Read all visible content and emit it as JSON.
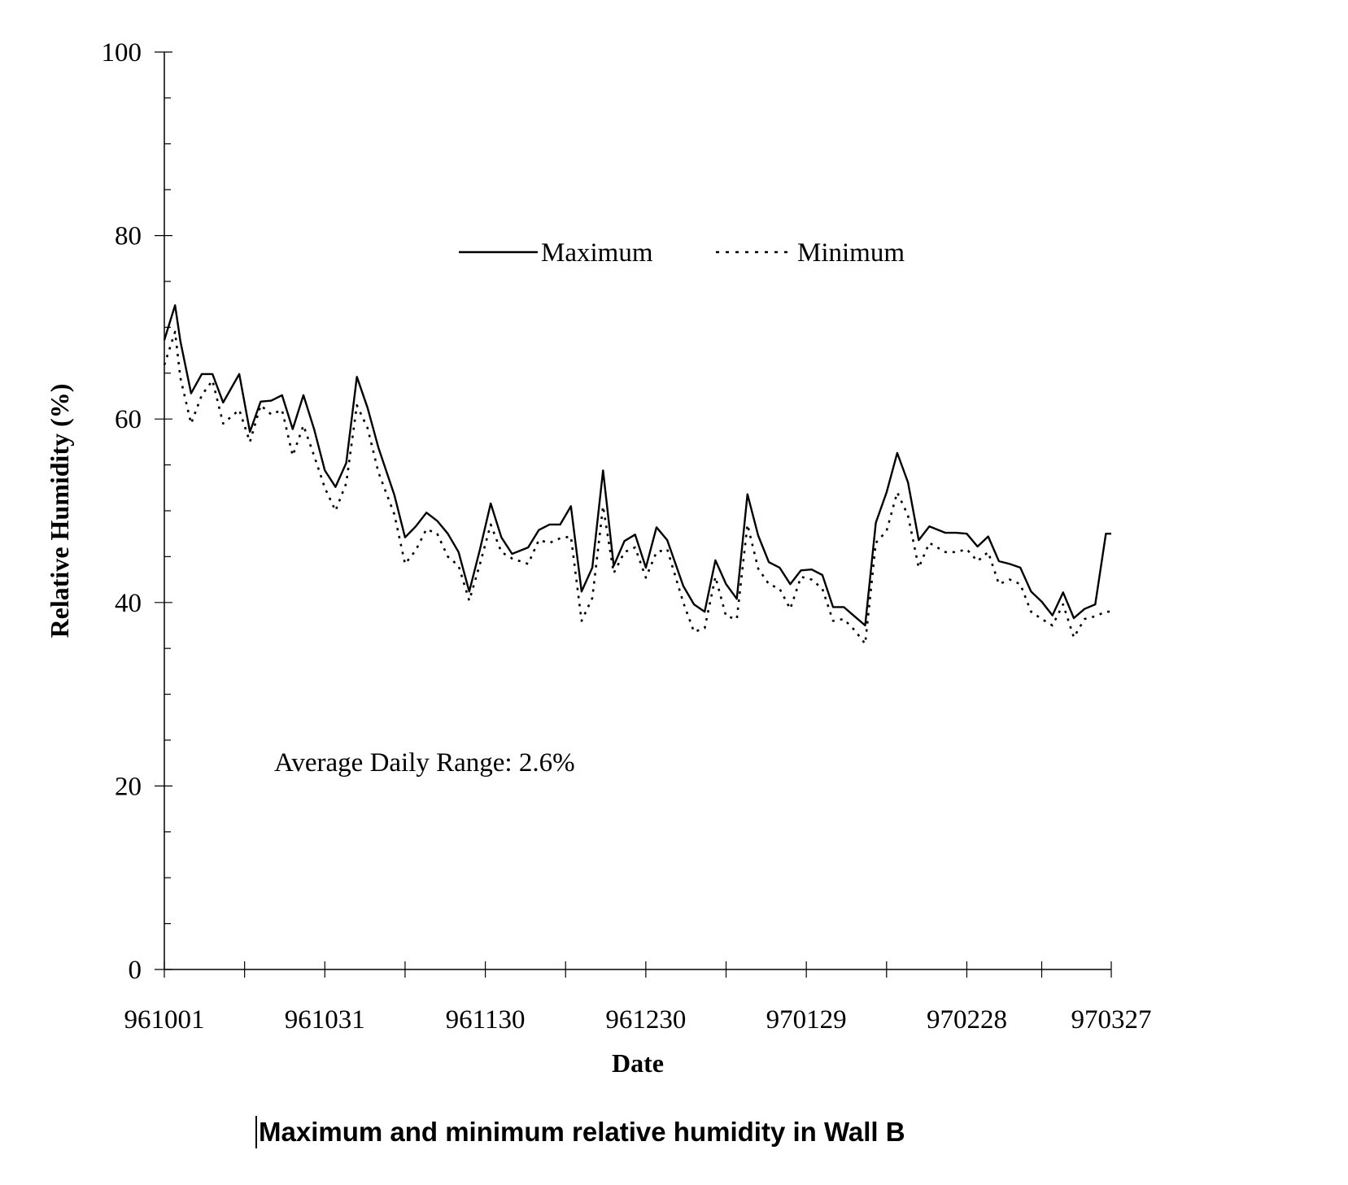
{
  "caption": "Maximum and minimum relative humidity in Wall B",
  "chart_data": {
    "type": "line",
    "xlabel": "Date",
    "ylabel": "Relative Humidity (%)",
    "ylim": [
      0,
      100
    ],
    "yticks": [
      "0",
      "20",
      "40",
      "60",
      "80",
      "100"
    ],
    "xticks": [
      "961001",
      "961031",
      "961130",
      "961230",
      "970129",
      "970228",
      "970327"
    ],
    "xlim": [
      "1996-10-01",
      "1997-03-27"
    ],
    "legend": {
      "placement": "top-center",
      "entries": [
        "Maximum",
        "Minimum"
      ]
    },
    "annotation": "Average Daily Range: 2.6%",
    "grid": false,
    "series": [
      {
        "name": "Maximum",
        "style": "solid",
        "x": [
          "1996-10-01",
          "1996-10-03",
          "1996-10-04",
          "1996-10-06",
          "1996-10-08",
          "1996-10-10",
          "1996-10-12",
          "1996-10-15",
          "1996-10-17",
          "1996-10-19",
          "1996-10-21",
          "1996-10-23",
          "1996-10-25",
          "1996-10-27",
          "1996-10-29",
          "1996-10-31",
          "1996-11-02",
          "1996-11-04",
          "1996-11-06",
          "1996-11-08",
          "1996-11-10",
          "1996-11-13",
          "1996-11-15",
          "1996-11-17",
          "1996-11-19",
          "1996-11-21",
          "1996-11-23",
          "1996-11-25",
          "1996-11-27",
          "1996-11-29",
          "1996-12-01",
          "1996-12-03",
          "1996-12-05",
          "1996-12-08",
          "1996-12-10",
          "1996-12-12",
          "1996-12-14",
          "1996-12-16",
          "1996-12-18",
          "1996-12-20",
          "1996-12-22",
          "1996-12-24",
          "1996-12-26",
          "1996-12-28",
          "1996-12-30",
          "1997-01-01",
          "1997-01-03",
          "1997-01-06",
          "1997-01-08",
          "1997-01-10",
          "1997-01-12",
          "1997-01-14",
          "1997-01-16",
          "1997-01-18",
          "1997-01-20",
          "1997-01-22",
          "1997-01-24",
          "1997-01-26",
          "1997-01-28",
          "1997-01-30",
          "1997-02-01",
          "1997-02-03",
          "1997-02-05",
          "1997-02-07",
          "1997-02-09",
          "1997-02-11",
          "1997-02-13",
          "1997-02-15",
          "1997-02-17",
          "1997-02-19",
          "1997-02-21",
          "1997-02-24",
          "1997-02-26",
          "1997-02-28",
          "1997-03-02",
          "1997-03-04",
          "1997-03-06",
          "1997-03-08",
          "1997-03-10",
          "1997-03-12",
          "1997-03-14",
          "1997-03-16",
          "1997-03-18",
          "1997-03-20",
          "1997-03-22",
          "1997-03-24",
          "1997-03-26",
          "1997-03-27"
        ],
        "y": [
          68.6,
          72.4,
          68.5,
          62.8,
          64.9,
          64.9,
          61.8,
          64.9,
          58.6,
          61.9,
          62.0,
          62.6,
          58.9,
          62.6,
          58.9,
          54.4,
          52.6,
          55.2,
          64.6,
          61.2,
          56.9,
          51.7,
          47.1,
          48.3,
          49.8,
          48.9,
          47.5,
          45.5,
          41.2,
          45.8,
          50.8,
          47.1,
          45.3,
          46.0,
          47.9,
          48.5,
          48.5,
          50.5,
          41.2,
          43.8,
          54.4,
          44.0,
          46.7,
          47.4,
          43.8,
          48.2,
          46.8,
          41.8,
          39.8,
          39.0,
          44.6,
          42.0,
          40.4,
          51.8,
          47.3,
          44.4,
          43.8,
          42.0,
          43.5,
          43.6,
          43.0,
          39.5,
          39.5,
          38.5,
          37.5,
          48.7,
          52.0,
          56.3,
          53.1,
          46.8,
          48.3,
          47.6,
          47.6,
          47.5,
          46.1,
          47.2,
          44.5,
          44.2,
          43.8,
          41.2,
          40.1,
          38.6,
          41.1,
          38.3,
          39.3,
          39.8,
          47.5,
          47.5
        ]
      },
      {
        "name": "Minimum",
        "style": "dotted",
        "x": [
          "1996-10-01",
          "1996-10-03",
          "1996-10-04",
          "1996-10-06",
          "1996-10-08",
          "1996-10-10",
          "1996-10-12",
          "1996-10-15",
          "1996-10-17",
          "1996-10-19",
          "1996-10-21",
          "1996-10-23",
          "1996-10-25",
          "1996-10-27",
          "1996-10-29",
          "1996-10-31",
          "1996-11-02",
          "1996-11-04",
          "1996-11-06",
          "1996-11-08",
          "1996-11-10",
          "1996-11-13",
          "1996-11-15",
          "1996-11-17",
          "1996-11-19",
          "1996-11-21",
          "1996-11-23",
          "1996-11-25",
          "1996-11-27",
          "1996-11-29",
          "1996-12-01",
          "1996-12-03",
          "1996-12-05",
          "1996-12-08",
          "1996-12-10",
          "1996-12-12",
          "1996-12-14",
          "1996-12-16",
          "1996-12-18",
          "1996-12-20",
          "1996-12-22",
          "1996-12-24",
          "1996-12-26",
          "1996-12-28",
          "1996-12-30",
          "1997-01-01",
          "1997-01-03",
          "1997-01-06",
          "1997-01-08",
          "1997-01-10",
          "1997-01-12",
          "1997-01-14",
          "1997-01-16",
          "1997-01-18",
          "1997-01-20",
          "1997-01-22",
          "1997-01-24",
          "1997-01-26",
          "1997-01-28",
          "1997-01-30",
          "1997-02-01",
          "1997-02-03",
          "1997-02-05",
          "1997-02-07",
          "1997-02-09",
          "1997-02-11",
          "1997-02-13",
          "1997-02-15",
          "1997-02-17",
          "1997-02-19",
          "1997-02-21",
          "1997-02-24",
          "1997-02-26",
          "1997-02-28",
          "1997-03-02",
          "1997-03-04",
          "1997-03-06",
          "1997-03-08",
          "1997-03-10",
          "1997-03-12",
          "1997-03-14",
          "1997-03-16",
          "1997-03-18",
          "1997-03-20",
          "1997-03-22",
          "1997-03-24",
          "1997-03-26",
          "1997-03-27"
        ],
        "y": [
          65.9,
          69.5,
          64.5,
          59.5,
          62.6,
          64.2,
          59.5,
          61.0,
          57.5,
          61.5,
          60.5,
          61.0,
          56.0,
          59.3,
          56.0,
          52.5,
          50.0,
          53.0,
          61.5,
          59.0,
          54.2,
          49.6,
          44.2,
          45.7,
          48.0,
          47.5,
          45.0,
          44.0,
          40.2,
          44.2,
          48.5,
          45.5,
          44.8,
          44.2,
          46.8,
          46.5,
          47.0,
          47.2,
          38.0,
          40.5,
          50.5,
          43.2,
          45.5,
          46.0,
          42.7,
          45.5,
          45.8,
          40.0,
          36.8,
          37.2,
          42.8,
          38.5,
          38.2,
          48.5,
          43.7,
          42.0,
          41.5,
          39.3,
          42.8,
          42.5,
          41.5,
          38.0,
          38.2,
          37.0,
          35.5,
          46.5,
          47.8,
          52.0,
          49.5,
          43.8,
          46.5,
          45.5,
          45.5,
          45.8,
          44.5,
          45.5,
          42.0,
          42.5,
          42.0,
          39.0,
          38.2,
          37.5,
          39.8,
          36.2,
          38.2,
          38.5,
          39.0,
          39.0
        ]
      }
    ]
  }
}
